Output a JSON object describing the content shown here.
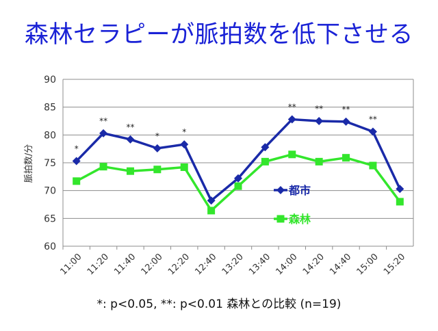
{
  "slide": {
    "title": "森林セラピーが脈拍数を低下させる",
    "footnote": "*: p<0.05, **: p<0.01 森林との比較 (n=19)"
  },
  "colors": {
    "title": "#1a22d6",
    "city_series": "#1a2aa8",
    "forest_series": "#33e62c",
    "grid": "#8c8c8c",
    "axis_text": "#333333"
  },
  "chart_data": {
    "type": "line",
    "title": "",
    "xlabel": "",
    "ylabel": "脈拍数/分",
    "ylim": [
      60,
      90
    ],
    "yticks": [
      60,
      65,
      70,
      75,
      80,
      85,
      90
    ],
    "grid": true,
    "legend_position": "inside-right",
    "categories": [
      "11:00",
      "11:20",
      "11:40",
      "12:00",
      "12:20",
      "12:40",
      "13:20",
      "13:40",
      "14:00",
      "14:20",
      "14:40",
      "15:00",
      "15:20"
    ],
    "series": [
      {
        "name": "都市",
        "marker": "diamond",
        "values": [
          75.3,
          80.3,
          79.2,
          77.6,
          78.3,
          68.2,
          72.2,
          77.8,
          82.8,
          82.5,
          82.4,
          80.6,
          70.3
        ]
      },
      {
        "name": "森林",
        "marker": "square",
        "values": [
          71.7,
          74.3,
          73.5,
          73.8,
          74.2,
          66.4,
          70.8,
          75.2,
          76.5,
          75.2,
          75.9,
          74.5,
          68.0
        ]
      }
    ],
    "annotations": [
      "*",
      "**",
      "**",
      "*",
      "*",
      "",
      "",
      "",
      "**",
      "**",
      "**",
      "**",
      ""
    ]
  }
}
